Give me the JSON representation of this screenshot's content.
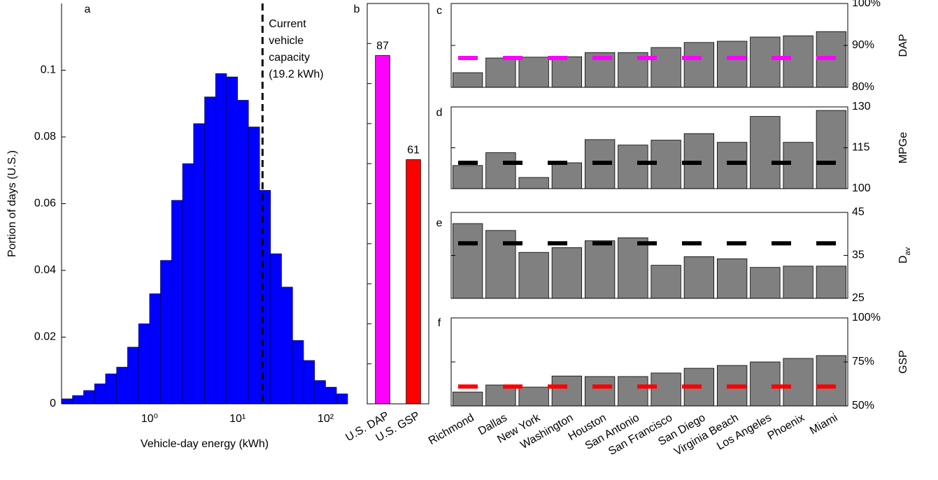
{
  "chart_data": [
    {
      "type": "histogram",
      "panel": "a",
      "xlabel": "Vehicle-day energy (kWh)",
      "ylabel": "Portion of days (U.S.)",
      "bins": [
        0.1,
        0.133,
        0.178,
        0.237,
        0.316,
        0.422,
        0.562,
        0.75,
        1,
        1.33,
        1.78,
        2.37,
        3.16,
        4.22,
        5.62,
        7.5,
        10,
        13.3,
        17.8,
        23.7,
        31.6,
        42.2,
        56.2,
        75,
        100,
        133,
        178
      ],
      "values": [
        0.0015,
        0.0025,
        0.004,
        0.006,
        0.009,
        0.011,
        0.017,
        0.024,
        0.033,
        0.043,
        0.061,
        0.072,
        0.084,
        0.092,
        0.099,
        0.098,
        0.091,
        0.083,
        0.064,
        0.045,
        0.035,
        0.019,
        0.013,
        0.007,
        0.005,
        0.003
      ],
      "color": "#0000ff",
      "xscale": "log",
      "xlim": [
        0.1,
        178
      ],
      "xticks": [
        {
          "value": 1,
          "label": "10⁰"
        },
        {
          "value": 10,
          "label": "10¹"
        },
        {
          "value": 100,
          "label": "10²"
        }
      ],
      "ylim": [
        0,
        0.12
      ],
      "yticks": [
        0,
        0.02,
        0.04,
        0.06,
        0.08,
        0.1
      ],
      "capacity_line": 19.2,
      "annotation": [
        "Current",
        "vehicle",
        "capacity",
        "(19.2 kWh)"
      ]
    },
    {
      "type": "bar",
      "panel": "b",
      "categories": [
        "U.S. DAP",
        "U.S. GSP"
      ],
      "values": [
        87,
        61
      ],
      "colors": [
        "#ff00ff",
        "#ff0000"
      ],
      "ylim": [
        0,
        100
      ],
      "yticks": [
        0,
        10,
        20,
        30,
        40,
        50,
        60,
        70,
        80,
        90,
        100
      ],
      "ytick_labels": false,
      "value_labels_shown": true
    },
    {
      "type": "bar",
      "panel": "c",
      "ylabel": "DAP",
      "color": "#808080",
      "yaxis": "right",
      "values": [
        83.5,
        87,
        87.2,
        87.3,
        88.3,
        88.3,
        89.5,
        90.7,
        91,
        92,
        92.3,
        93.3
      ],
      "ylim": [
        80,
        100
      ],
      "yticks": [
        {
          "value": 80,
          "label": "80%"
        },
        {
          "value": 90,
          "label": "90%"
        },
        {
          "value": 100,
          "label": "100%"
        }
      ],
      "reference": 87,
      "reference_color": "#ff00ff"
    },
    {
      "type": "bar",
      "panel": "d",
      "ylabel": "MPGe",
      "color": "#808080",
      "yaxis": "right",
      "values": [
        108.5,
        113.2,
        104.1,
        109.5,
        118,
        116,
        117.8,
        120.2,
        117,
        126.5,
        117,
        128.7
      ],
      "ylim": [
        100,
        130
      ],
      "yticks": [
        100,
        115,
        130
      ],
      "reference": 109.5,
      "reference_color": "#000000"
    },
    {
      "type": "bar",
      "panel": "e",
      "ylabel": "D",
      "ylabel_sub": "av",
      "color": "#808080",
      "yaxis": "right",
      "values": [
        42.4,
        40.8,
        35.7,
        36.8,
        38.4,
        39.1,
        32.7,
        34.7,
        34.2,
        32.2,
        32.5,
        32.5
      ],
      "ylim": [
        25,
        45
      ],
      "yticks": [
        25,
        35,
        45
      ],
      "reference": 37.8,
      "reference_color": "#000000"
    },
    {
      "type": "bar",
      "panel": "f",
      "ylabel": "GSP",
      "color": "#808080",
      "yaxis": "right",
      "categories": [
        "Richmond",
        "Dallas",
        "New York",
        "Washington",
        "Houston",
        "San Antonio",
        "San Francisco",
        "San Diego",
        "Virginia Beach",
        "Los Angeles",
        "Phoenix",
        "Miami"
      ],
      "values": [
        57.9,
        61.9,
        60.7,
        67,
        66.7,
        66.7,
        68.7,
        71.4,
        73,
        75,
        77,
        78.6
      ],
      "ylim": [
        50,
        100
      ],
      "yticks": [
        {
          "value": 50,
          "label": "50%"
        },
        {
          "value": 75,
          "label": "75%"
        },
        {
          "value": 100,
          "label": "100%"
        }
      ],
      "reference": 61,
      "reference_color": "#ff0000"
    }
  ]
}
